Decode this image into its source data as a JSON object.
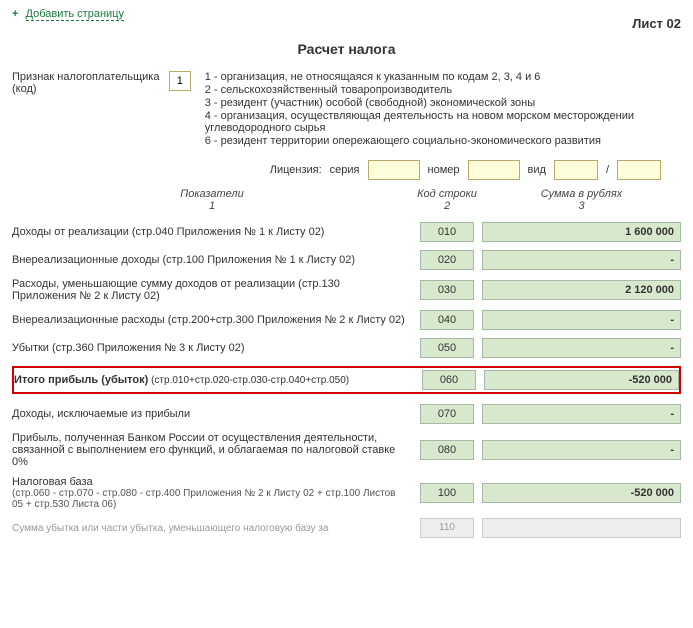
{
  "top": {
    "add_page": "Добавить страницу",
    "sheet": "Лист 02",
    "title": "Расчет налога"
  },
  "attr": {
    "label": "Признак налогоплательщика (код)",
    "code": "1",
    "legend": [
      "1 - организация, не относящаяся к указанным по кодам 2, 3, 4 и 6",
      "2 - сельскохозяйственный товаропроизводитель",
      "3 - резидент (участник) особой (свободной) экономической зоны",
      "4 - организация, осуществляющая деятельность на новом морском месторождении углеводородного сырья",
      "6 - резидент территории опережающего социально-экономического развития"
    ]
  },
  "license": {
    "label": "Лицензия:",
    "series": "серия",
    "number": "номер",
    "type": "вид",
    "slash": "/"
  },
  "headers": {
    "ind": "Показатели",
    "ind_n": "1",
    "code": "Код строки",
    "code_n": "2",
    "sum": "Сумма в рублях",
    "sum_n": "3"
  },
  "rows": [
    {
      "label": "Доходы от реализации (стр.040 Приложения № 1 к Листу 02)",
      "code": "010",
      "sum": "1 600 000",
      "hl": false
    },
    {
      "label": "Внереализационные доходы (стр.100 Приложения № 1 к Листу 02)",
      "code": "020",
      "sum": "-",
      "hl": false
    },
    {
      "label": "Расходы, уменьшающие сумму доходов от реализации (стр.130 Приложения № 2 к Листу 02)",
      "code": "030",
      "sum": "2 120 000",
      "hl": false
    },
    {
      "label": "Внереализационные расходы (стр.200+стр.300 Приложения № 2 к Листу 02)",
      "code": "040",
      "sum": "-",
      "hl": false
    },
    {
      "label": "Убытки (стр.360 Приложения № 3 к Листу 02)",
      "code": "050",
      "sum": "-",
      "hl": false
    },
    {
      "label": "Итого прибыль (убыток)",
      "sub": "(стр.010+стр.020-стр.030-стр.040+стр.050)",
      "code": "060",
      "sum": "-520 000",
      "hl": true,
      "bold": true
    },
    {
      "label": "Доходы, исключаемые из прибыли",
      "code": "070",
      "sum": "-",
      "hl": false
    },
    {
      "label": "Прибыль, полученная Банком России от осуществления деятельности, связанной с выполнением его функций, и облагаемая по налоговой ставке 0%",
      "code": "080",
      "sum": "-",
      "hl": false
    },
    {
      "label": "Налоговая база",
      "sub2": "(стр.060 - стр.070 - стр.080 - стр.400 Приложения № 2 к Листу 02 + стр.100 Листов 05 + стр.530 Листа 06)",
      "code": "100",
      "sum": "-520 000",
      "hl": false
    }
  ],
  "faded": {
    "label": "Сумма убытка или части убытка, уменьшающего налоговую базу за",
    "code": "110"
  }
}
